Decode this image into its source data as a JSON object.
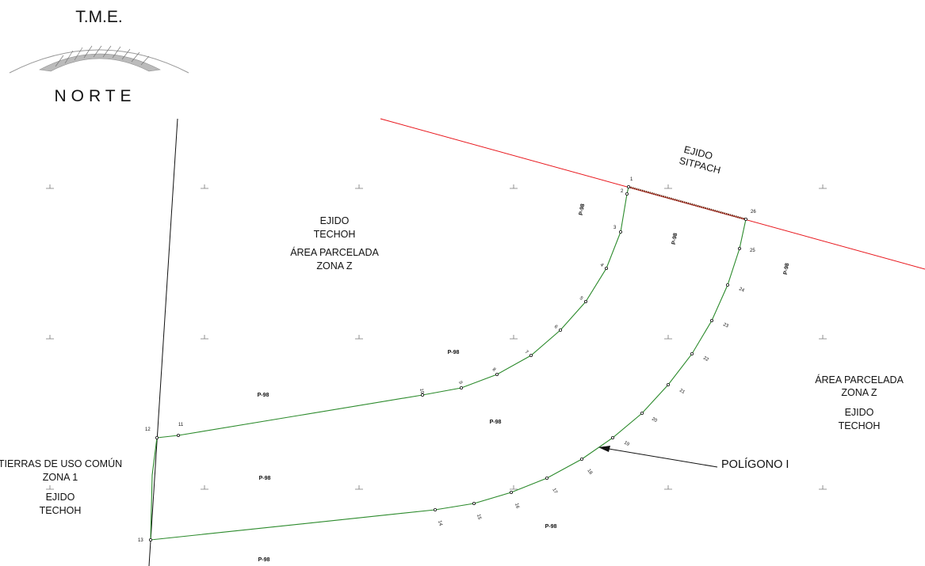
{
  "header": {
    "line1": "T.M.E.",
    "line2": "NORTE"
  },
  "zones": {
    "sitpach": [
      "EJIDO",
      "SITPACH"
    ],
    "techoh_north": [
      "EJIDO",
      "TECHOH",
      "ÁREA PARCELADA",
      "ZONA Z"
    ],
    "techoh_east": [
      "ÁREA PARCELADA",
      "ZONA Z",
      "EJIDO",
      "TECHOH"
    ],
    "tierras": [
      "TIERRAS DE USO COMÚN",
      "ZONA 1",
      "EJIDO",
      "TECHOH"
    ]
  },
  "polygon_label": "POLÍGONO I",
  "parcel_label": "P-98",
  "vertices": [
    "1",
    "2",
    "3",
    "4",
    "5",
    "6",
    "7",
    "8",
    "9",
    "10",
    "11",
    "12",
    "13",
    "14",
    "15",
    "16",
    "17",
    "18",
    "19",
    "20",
    "21",
    "22",
    "23",
    "24",
    "25",
    "26"
  ],
  "colors": {
    "boundary_red": "#e8141a",
    "polygon_green": "#2b8a2b",
    "line_black": "#111111",
    "grid": "#777777"
  }
}
